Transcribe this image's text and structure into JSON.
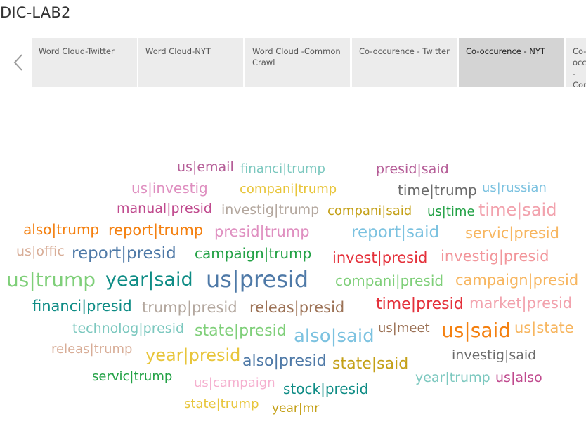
{
  "dashboard": {
    "title": "DIC-LAB2"
  },
  "tabs": [
    {
      "label": "Word Cloud-Twitter",
      "active": false
    },
    {
      "label": "Word Cloud-NYT",
      "active": false
    },
    {
      "label": "Word Cloud -Common Crawl",
      "active": false
    },
    {
      "label": "Co-occurence - Twitter",
      "active": false
    },
    {
      "label": "Co-occurence - NYT",
      "active": true
    },
    {
      "label": "Co-occurence - Common Crawl",
      "active": false
    }
  ],
  "nav": {
    "prev_icon": "chevron-left-icon"
  },
  "word_cloud": {
    "words": [
      {
        "text": "us|email",
        "color": "#b55d97"
      },
      {
        "text": "financi|trump",
        "color": "#7cc8bf"
      },
      {
        "text": "presid|said",
        "color": "#b55d97"
      },
      {
        "text": "us|investig",
        "color": "#df8fc0"
      },
      {
        "text": "compani|trump",
        "color": "#e8c53a"
      },
      {
        "text": "time|trump",
        "color": "#6c6c6c"
      },
      {
        "text": "us|russian",
        "color": "#7cc2e0"
      },
      {
        "text": "manual|presid",
        "color": "#c04a8e"
      },
      {
        "text": "investig|trump",
        "color": "#b3a79e"
      },
      {
        "text": "compani|said",
        "color": "#c4a017"
      },
      {
        "text": "us|time",
        "color": "#22a145"
      },
      {
        "text": "time|said",
        "color": "#f2a2ad"
      },
      {
        "text": "also|trump",
        "color": "#f48010"
      },
      {
        "text": "report|trump",
        "color": "#f48010"
      },
      {
        "text": "presid|trump",
        "color": "#df8fc0"
      },
      {
        "text": "report|said",
        "color": "#7cc2e0"
      },
      {
        "text": "servic|presid",
        "color": "#f7b660"
      },
      {
        "text": "us|offic",
        "color": "#d8ad97"
      },
      {
        "text": "report|presid",
        "color": "#4e79a7"
      },
      {
        "text": "campaign|trump",
        "color": "#22a145"
      },
      {
        "text": "invest|presid",
        "color": "#e4303a"
      },
      {
        "text": "investig|presid",
        "color": "#f2969b"
      },
      {
        "text": "us|trump",
        "color": "#7fcf79"
      },
      {
        "text": "year|said",
        "color": "#0e8c85"
      },
      {
        "text": "us|presid",
        "color": "#4e79a7"
      },
      {
        "text": "compani|presid",
        "color": "#7fcf79"
      },
      {
        "text": "campaign|presid",
        "color": "#f7b660"
      },
      {
        "text": "financi|presid",
        "color": "#0e8c85"
      },
      {
        "text": "trump|presid",
        "color": "#b3a79e"
      },
      {
        "text": "releas|presid",
        "color": "#9c7256"
      },
      {
        "text": "time|presid",
        "color": "#e4303a"
      },
      {
        "text": "market|presid",
        "color": "#f2a2ad"
      },
      {
        "text": "technolog|presid",
        "color": "#7cc8bf"
      },
      {
        "text": "state|presid",
        "color": "#7fcf79"
      },
      {
        "text": "also|said",
        "color": "#7cc2e0"
      },
      {
        "text": "us|meet",
        "color": "#9c7256"
      },
      {
        "text": "us|said",
        "color": "#f48010"
      },
      {
        "text": "us|state",
        "color": "#f7b660"
      },
      {
        "text": "releas|trump",
        "color": "#d8ad97"
      },
      {
        "text": "year|presid",
        "color": "#e8c53a"
      },
      {
        "text": "also|presid",
        "color": "#4e79a7"
      },
      {
        "text": "state|said",
        "color": "#c4a017"
      },
      {
        "text": "investig|said",
        "color": "#6c6c6c"
      },
      {
        "text": "servic|trump",
        "color": "#22a145"
      },
      {
        "text": "us|campaign",
        "color": "#f5b0cf"
      },
      {
        "text": "stock|presid",
        "color": "#0e8c85"
      },
      {
        "text": "year|trump",
        "color": "#7cc8bf"
      },
      {
        "text": "us|also",
        "color": "#c04a8e"
      },
      {
        "text": "state|trump",
        "color": "#e8c53a"
      },
      {
        "text": "year|mr",
        "color": "#c4a017"
      }
    ]
  }
}
